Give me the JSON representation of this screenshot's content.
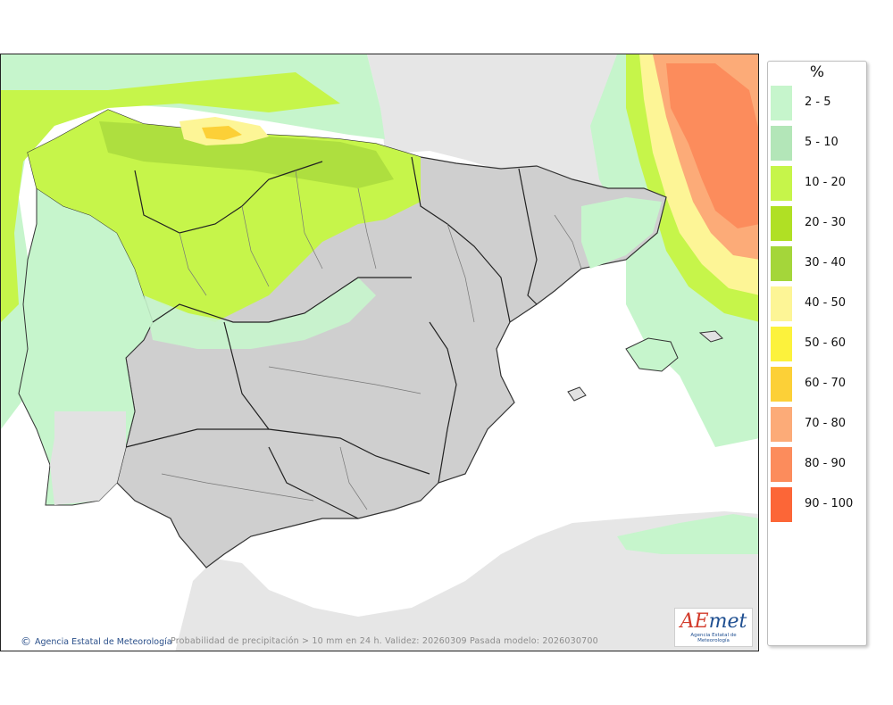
{
  "legend": {
    "unit": "%",
    "items": [
      {
        "label": "2 - 5",
        "color": "#c6f5cc"
      },
      {
        "label": "5 - 10",
        "color": "#b3e6b8"
      },
      {
        "label": "10 - 20",
        "color": "#c6f54a"
      },
      {
        "label": "20 - 30",
        "color": "#b0e024"
      },
      {
        "label": "30 - 40",
        "color": "#a4d63a"
      },
      {
        "label": "40 - 50",
        "color": "#fdf596"
      },
      {
        "label": "50 - 60",
        "color": "#fcf23c"
      },
      {
        "label": "60 - 70",
        "color": "#fcd037"
      },
      {
        "label": "70 - 80",
        "color": "#fcab78"
      },
      {
        "label": "80 - 90",
        "color": "#fc8c5c"
      },
      {
        "label": "90 - 100",
        "color": "#fc6637"
      }
    ]
  },
  "map": {
    "credit": "Agencia Estatal de Meteorología",
    "credit_symbol": "©",
    "caption": "Probabilidad de precipitación > 10 mm en 24 h. Validez: 20260309 Pasada modelo: 2026030700",
    "logo_prefix": "AE",
    "logo_accent": "met",
    "logo_subtitle": "Agencia Estatal de Meteorología"
  }
}
